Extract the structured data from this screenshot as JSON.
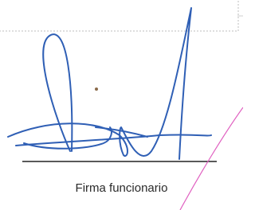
{
  "signature": {
    "caption": "Firma funcionario"
  }
}
